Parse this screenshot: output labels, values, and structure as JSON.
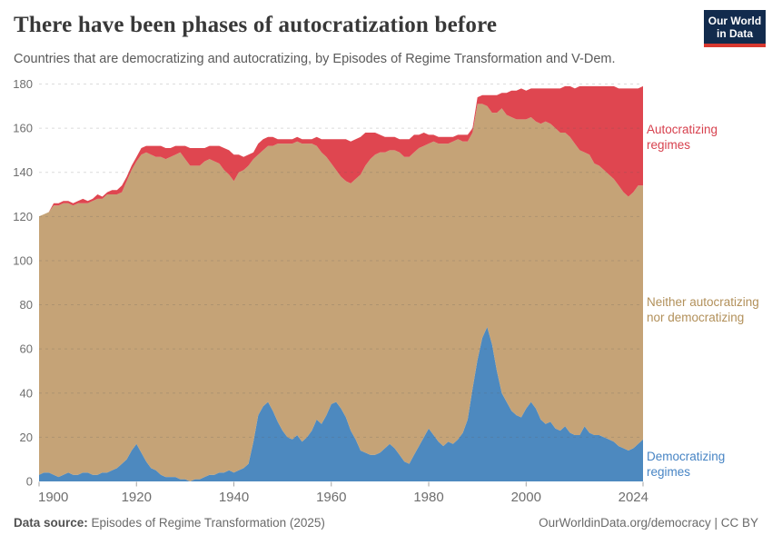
{
  "header": {
    "title": "There have been phases of autocratization before",
    "subtitle": "Countries that are democratizing and autocratizing, by Episodes of Regime Transformation and V-Dem.",
    "logo": {
      "line1": "Our World",
      "line2": "in Data",
      "bg_color": "#122B4D",
      "strip_color": "#D8382F"
    }
  },
  "chart_data": {
    "type": "area",
    "stacked": true,
    "title": "There have been phases of autocratization before",
    "xlabel": "",
    "ylabel": "",
    "x_start": 1900,
    "x_end": 2024,
    "x_ticks": [
      1900,
      1920,
      1940,
      1960,
      1980,
      2000,
      2024
    ],
    "y_ticks": [
      0,
      20,
      40,
      60,
      80,
      100,
      120,
      140,
      160,
      180
    ],
    "ylim": [
      0,
      180
    ],
    "grid": true,
    "legend_position": "right-annotations",
    "series": [
      {
        "name": "Democratizing regimes",
        "slug": "democratizing-regimes",
        "color": "#4D89BF",
        "label_color": "#4784C4",
        "values": [
          3,
          4,
          4,
          3,
          2,
          3,
          4,
          3,
          3,
          4,
          4,
          3,
          3,
          4,
          4,
          5,
          6,
          8,
          10,
          14,
          17,
          13,
          9,
          6,
          5,
          3,
          2,
          2,
          2,
          1,
          1,
          0,
          1,
          1,
          2,
          3,
          3,
          4,
          4,
          5,
          4,
          5,
          6,
          8,
          18,
          30,
          34,
          36,
          32,
          27,
          23,
          20,
          19,
          21,
          18,
          20,
          23,
          28,
          26,
          30,
          35,
          36,
          33,
          29,
          23,
          19,
          14,
          13,
          12,
          12,
          13,
          15,
          17,
          15,
          12,
          9,
          8,
          12,
          16,
          20,
          24,
          21,
          18,
          16,
          18,
          17,
          19,
          22,
          28,
          42,
          55,
          65,
          70,
          62,
          50,
          40,
          36,
          32,
          30,
          29,
          33,
          36,
          33,
          28,
          26,
          27,
          24,
          23,
          25,
          22,
          21,
          21,
          25,
          22,
          21,
          21,
          20,
          19,
          18,
          16,
          15,
          14,
          15,
          17,
          19
        ]
      },
      {
        "name": "Neither autocratizing nor democratizing",
        "slug": "neither-autocratizing-nor-democratizing",
        "color": "#C5A377",
        "label_color": "#B2905A",
        "values": [
          117,
          117,
          118,
          122,
          123,
          123,
          122,
          122,
          123,
          122,
          122,
          124,
          125,
          124,
          126,
          125,
          124,
          123,
          126,
          127,
          128,
          135,
          140,
          142,
          142,
          144,
          144,
          145,
          146,
          148,
          145,
          143,
          142,
          142,
          143,
          143,
          142,
          140,
          137,
          134,
          132,
          135,
          135,
          135,
          128,
          118,
          116,
          116,
          120,
          126,
          130,
          133,
          134,
          133,
          135,
          133,
          130,
          124,
          123,
          117,
          109,
          105,
          105,
          107,
          112,
          118,
          125,
          130,
          134,
          136,
          136,
          134,
          133,
          135,
          137,
          138,
          139,
          137,
          135,
          132,
          129,
          133,
          135,
          137,
          135,
          137,
          136,
          132,
          126,
          116,
          116,
          106,
          100,
          105,
          117,
          129,
          130,
          133,
          134,
          135,
          131,
          129,
          130,
          134,
          137,
          135,
          136,
          135,
          133,
          134,
          132,
          129,
          124,
          126,
          123,
          122,
          121,
          120,
          119,
          118,
          116,
          115,
          116,
          117,
          115
        ]
      },
      {
        "name": "Autocratizing regimes",
        "slug": "autocratizing-regimes",
        "color": "#DF4650",
        "label_color": "#D7414E",
        "values": [
          0,
          0,
          0,
          1,
          1,
          1,
          1,
          1,
          1,
          2,
          1,
          1,
          2,
          1,
          1,
          2,
          2,
          3,
          2,
          2,
          2,
          3,
          3,
          4,
          5,
          5,
          5,
          4,
          4,
          3,
          6,
          8,
          8,
          8,
          6,
          6,
          7,
          8,
          10,
          11,
          12,
          8,
          6,
          5,
          3,
          5,
          5,
          4,
          4,
          2,
          2,
          2,
          2,
          2,
          2,
          2,
          2,
          4,
          6,
          8,
          11,
          14,
          17,
          19,
          19,
          18,
          17,
          15,
          12,
          10,
          8,
          7,
          6,
          6,
          6,
          8,
          8,
          8,
          6,
          6,
          4,
          3,
          3,
          3,
          3,
          2,
          2,
          3,
          3,
          2,
          3,
          4,
          5,
          8,
          8,
          7,
          10,
          12,
          13,
          14,
          13,
          13,
          15,
          16,
          15,
          16,
          18,
          20,
          21,
          23,
          25,
          29,
          30,
          31,
          35,
          36,
          38,
          40,
          42,
          44,
          47,
          49,
          47,
          44,
          45
        ]
      }
    ]
  },
  "footer": {
    "source_label": "Data source:",
    "source_value": " Episodes of Regime Transformation (2025)",
    "credit": "OurWorldinData.org/democracy | CC BY"
  }
}
